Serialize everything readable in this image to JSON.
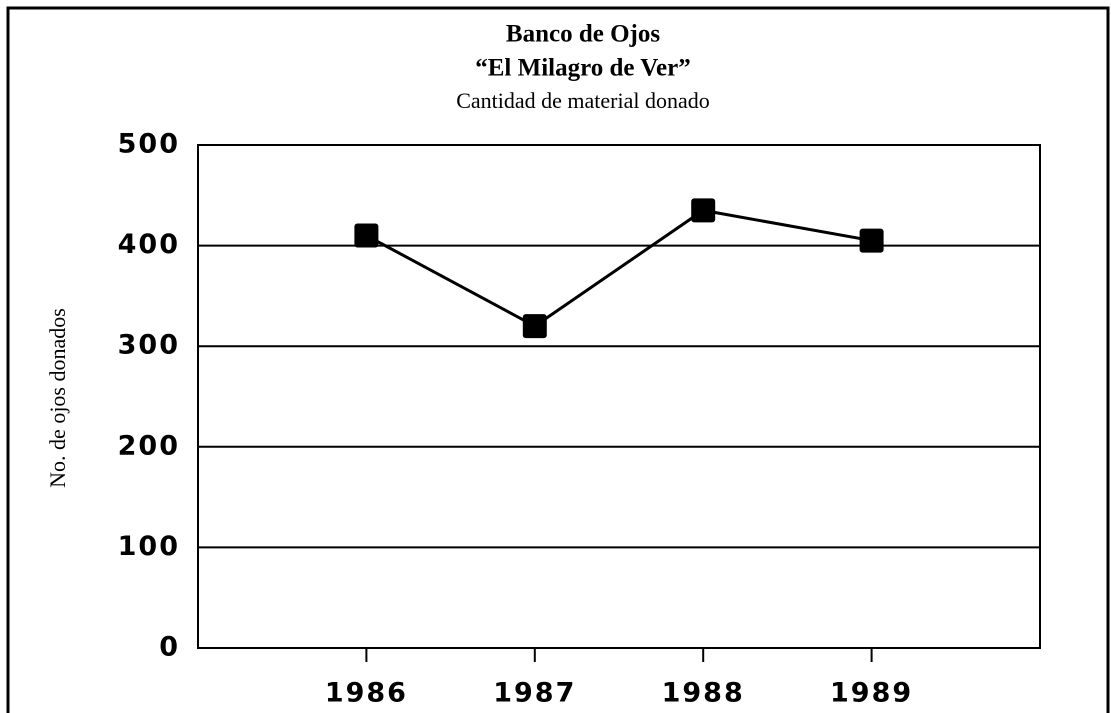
{
  "chart_data": {
    "type": "line",
    "title": [
      "Banco de Ojos",
      "“El Milagro de Ver”"
    ],
    "subtitle": "Cantidad de material donado",
    "y_label": "No. de ojos donados",
    "categories": [
      "1986",
      "1987",
      "1988",
      "1989"
    ],
    "values": [
      410,
      320,
      435,
      405
    ],
    "color": "#000000",
    "ylim": [
      0,
      500
    ],
    "yticks": [
      0,
      100,
      200,
      300,
      400,
      500
    ],
    "grid": true
  }
}
